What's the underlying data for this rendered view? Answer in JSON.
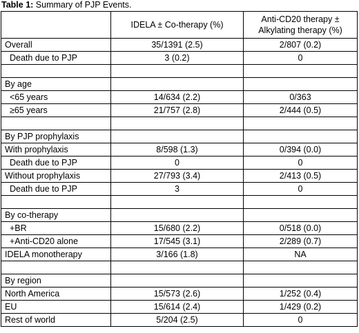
{
  "caption": {
    "label": "Table 1:",
    "text": "Summary of PJP Events."
  },
  "header": {
    "col1": "",
    "col2": "IDELA ± Co-therapy (%)",
    "col3": "Anti-CD20 therapy ± Alkylating therapy (%)"
  },
  "rows": [
    {
      "label": "Overall",
      "idela": "35/1391 (2.5)",
      "anti": "2/807 (0.2)"
    },
    {
      "label": "Death due to PJP",
      "idela": "3 (0.2)",
      "anti": "0"
    },
    {
      "label": "",
      "idela": "",
      "anti": ""
    },
    {
      "label": "By age",
      "idela": "",
      "anti": ""
    },
    {
      "label": "<65 years",
      "idela": "14/634 (2.2)",
      "anti": "0/363"
    },
    {
      "label": "≥65 years",
      "idela": "21/757 (2.8)",
      "anti": "2/444 (0.5)"
    },
    {
      "label": "",
      "idela": "",
      "anti": ""
    },
    {
      "label": "By PJP prophylaxis",
      "idela": "",
      "anti": ""
    },
    {
      "label": "With prophylaxis",
      "idela": "8/598 (1.3)",
      "anti": "0/394 (0.0)"
    },
    {
      "label": "Death due to PJP",
      "idela": "0",
      "anti": "0"
    },
    {
      "label": "Without prophylaxis",
      "idela": "27/793 (3.4)",
      "anti": "2/413 (0.5)"
    },
    {
      "label": "Death due to PJP",
      "idela": "3",
      "anti": "0"
    },
    {
      "label": "",
      "idela": "",
      "anti": ""
    },
    {
      "label": "By co-therapy",
      "idela": "",
      "anti": ""
    },
    {
      "label": "+BR",
      "idela": "15/680 (2.2)",
      "anti": "0/518 (0.0)"
    },
    {
      "label": "+Anti-CD20 alone",
      "idela": "17/545 (3.1)",
      "anti": "2/289 (0.7)"
    },
    {
      "label": "IDELA monotherapy",
      "idela": "3/166 (1.8)",
      "anti": "NA"
    },
    {
      "label": "",
      "idela": "",
      "anti": ""
    },
    {
      "label": "By region",
      "idela": "",
      "anti": ""
    },
    {
      "label": "North America",
      "idela": "15/573 (2.6)",
      "anti": "1/252 (0.4)"
    },
    {
      "label": "EU",
      "idela": "15/614 (2.4)",
      "anti": "1/429 (0.2)"
    },
    {
      "label": "Rest of world",
      "idela": "5/204 (2.5)",
      "anti": "0"
    }
  ]
}
